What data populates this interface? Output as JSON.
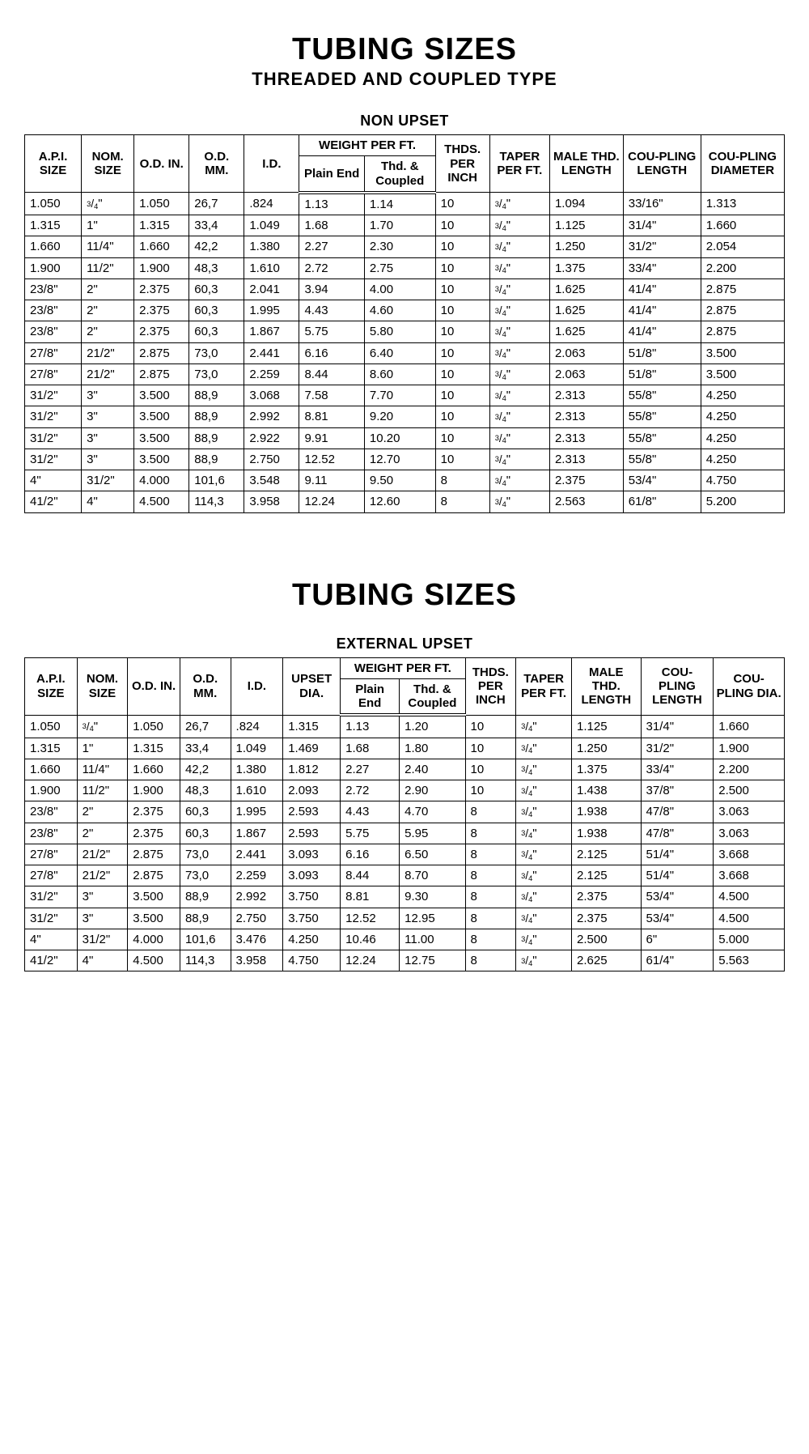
{
  "block1": {
    "title": "TUBING SIZES",
    "subtitle": "THREADED AND COUPLED TYPE",
    "caption": "NON UPSET",
    "headers": {
      "api": "A.P.I. SIZE",
      "nom": "NOM. SIZE",
      "odin": "O.D. IN.",
      "odmm": "O.D. MM.",
      "id": "I.D.",
      "wpft": "WEIGHT PER FT.",
      "plain": "Plain End",
      "thd": "Thd. & Coupled",
      "thds": "THDS. PER INCH",
      "taper": "TAPER PER FT.",
      "male": "MALE THD. LENGTH",
      "clen": "COU-PLING LENGTH",
      "cdia": "COU-PLING DIAMETER"
    },
    "rows": [
      [
        "1.050",
        "3/4\"",
        "1.050",
        "26,7",
        ".824",
        "1.13",
        "1.14",
        "10",
        "3/4\"",
        "1.094",
        "33/16\"",
        "1.313"
      ],
      [
        "1.315",
        "1\"",
        "1.315",
        "33,4",
        "1.049",
        "1.68",
        "1.70",
        "10",
        "3/4\"",
        "1.125",
        "31/4\"",
        "1.660"
      ],
      [
        "1.660",
        "11/4\"",
        "1.660",
        "42,2",
        "1.380",
        "2.27",
        "2.30",
        "10",
        "3/4\"",
        "1.250",
        "31/2\"",
        "2.054"
      ],
      [
        "1.900",
        "11/2\"",
        "1.900",
        "48,3",
        "1.610",
        "2.72",
        "2.75",
        "10",
        "3/4\"",
        "1.375",
        "33/4\"",
        "2.200"
      ],
      [
        "23/8\"",
        "2\"",
        "2.375",
        "60,3",
        "2.041",
        "3.94",
        "4.00",
        "10",
        "3/4\"",
        "1.625",
        "41/4\"",
        "2.875"
      ],
      [
        "23/8\"",
        "2\"",
        "2.375",
        "60,3",
        "1.995",
        "4.43",
        "4.60",
        "10",
        "3/4\"",
        "1.625",
        "41/4\"",
        "2.875"
      ],
      [
        "23/8\"",
        "2\"",
        "2.375",
        "60,3",
        "1.867",
        "5.75",
        "5.80",
        "10",
        "3/4\"",
        "1.625",
        "41/4\"",
        "2.875"
      ],
      [
        "27/8\"",
        "21/2\"",
        "2.875",
        "73,0",
        "2.441",
        "6.16",
        "6.40",
        "10",
        "3/4\"",
        "2.063",
        "51/8\"",
        "3.500"
      ],
      [
        "27/8\"",
        "21/2\"",
        "2.875",
        "73,0",
        "2.259",
        "8.44",
        "8.60",
        "10",
        "3/4\"",
        "2.063",
        "51/8\"",
        "3.500"
      ],
      [
        "31/2\"",
        "3\"",
        "3.500",
        "88,9",
        "3.068",
        "7.58",
        "7.70",
        "10",
        "3/4\"",
        "2.313",
        "55/8\"",
        "4.250"
      ],
      [
        "31/2\"",
        "3\"",
        "3.500",
        "88,9",
        "2.992",
        "8.81",
        "9.20",
        "10",
        "3/4\"",
        "2.313",
        "55/8\"",
        "4.250"
      ],
      [
        "31/2\"",
        "3\"",
        "3.500",
        "88,9",
        "2.922",
        "9.91",
        "10.20",
        "10",
        "3/4\"",
        "2.313",
        "55/8\"",
        "4.250"
      ],
      [
        "31/2\"",
        "3\"",
        "3.500",
        "88,9",
        "2.750",
        "12.52",
        "12.70",
        "10",
        "3/4\"",
        "2.313",
        "55/8\"",
        "4.250"
      ],
      [
        "4\"",
        "31/2\"",
        "4.000",
        "101,6",
        "3.548",
        "9.11",
        "9.50",
        "8",
        "3/4\"",
        "2.375",
        "53/4\"",
        "4.750"
      ],
      [
        "41/2\"",
        "4\"",
        "4.500",
        "114,3",
        "3.958",
        "12.24",
        "12.60",
        "8",
        "3/4\"",
        "2.563",
        "61/8\"",
        "5.200"
      ]
    ]
  },
  "block2": {
    "title": "TUBING SIZES",
    "caption": "EXTERNAL UPSET",
    "headers": {
      "api": "A.P.I. SIZE",
      "nom": "NOM. SIZE",
      "odin": "O.D. IN.",
      "odmm": "O.D. MM.",
      "id": "I.D.",
      "upset": "UPSET DIA.",
      "wpft": "WEIGHT PER FT.",
      "plain": "Plain End",
      "thd": "Thd. & Coupled",
      "thds": "THDS. PER INCH",
      "taper": "TAPER PER FT.",
      "male": "MALE THD. LENGTH",
      "clen": "COU-PLING LENGTH",
      "cdia": "COU-PLING DIA."
    },
    "rows": [
      [
        "1.050",
        "3/4\"",
        "1.050",
        "26,7",
        ".824",
        "1.315",
        "1.13",
        "1.20",
        "10",
        "3/4\"",
        "1.125",
        "31/4\"",
        "1.660"
      ],
      [
        "1.315",
        "1\"",
        "1.315",
        "33,4",
        "1.049",
        "1.469",
        "1.68",
        "1.80",
        "10",
        "3/4\"",
        "1.250",
        "31/2\"",
        "1.900"
      ],
      [
        "1.660",
        "11/4\"",
        "1.660",
        "42,2",
        "1.380",
        "1.812",
        "2.27",
        "2.40",
        "10",
        "3/4\"",
        "1.375",
        "33/4\"",
        "2.200"
      ],
      [
        "1.900",
        "11/2\"",
        "1.900",
        "48,3",
        "1.610",
        "2.093",
        "2.72",
        "2.90",
        "10",
        "3/4\"",
        "1.438",
        "37/8\"",
        "2.500"
      ],
      [
        "23/8\"",
        "2\"",
        "2.375",
        "60,3",
        "1.995",
        "2.593",
        "4.43",
        "4.70",
        "8",
        "3/4\"",
        "1.938",
        "47/8\"",
        "3.063"
      ],
      [
        "23/8\"",
        "2\"",
        "2.375",
        "60,3",
        "1.867",
        "2.593",
        "5.75",
        "5.95",
        "8",
        "3/4\"",
        "1.938",
        "47/8\"",
        "3.063"
      ],
      [
        "27/8\"",
        "21/2\"",
        "2.875",
        "73,0",
        "2.441",
        "3.093",
        "6.16",
        "6.50",
        "8",
        "3/4\"",
        "2.125",
        "51/4\"",
        "3.668"
      ],
      [
        "27/8\"",
        "21/2\"",
        "2.875",
        "73,0",
        "2.259",
        "3.093",
        "8.44",
        "8.70",
        "8",
        "3/4\"",
        "2.125",
        "51/4\"",
        "3.668"
      ],
      [
        "31/2\"",
        "3\"",
        "3.500",
        "88,9",
        "2.992",
        "3.750",
        "8.81",
        "9.30",
        "8",
        "3/4\"",
        "2.375",
        "53/4\"",
        "4.500"
      ],
      [
        "31/2\"",
        "3\"",
        "3.500",
        "88,9",
        "2.750",
        "3.750",
        "12.52",
        "12.95",
        "8",
        "3/4\"",
        "2.375",
        "53/4\"",
        "4.500"
      ],
      [
        "4\"",
        "31/2\"",
        "4.000",
        "101,6",
        "3.476",
        "4.250",
        "10.46",
        "11.00",
        "8",
        "3/4\"",
        "2.500",
        "6\"",
        "5.000"
      ],
      [
        "41/2\"",
        "4\"",
        "4.500",
        "114,3",
        "3.958",
        "4.750",
        "12.24",
        "12.75",
        "8",
        "3/4\"",
        "2.625",
        "61/4\"",
        "5.563"
      ]
    ]
  },
  "style": {
    "border_color": "#000000",
    "background": "#ffffff",
    "text_color": "#000000",
    "title_fontsize": 38,
    "subtitle_fontsize": 22,
    "caption_fontsize": 18,
    "cell_fontsize": 15,
    "font_family": "Arial"
  }
}
